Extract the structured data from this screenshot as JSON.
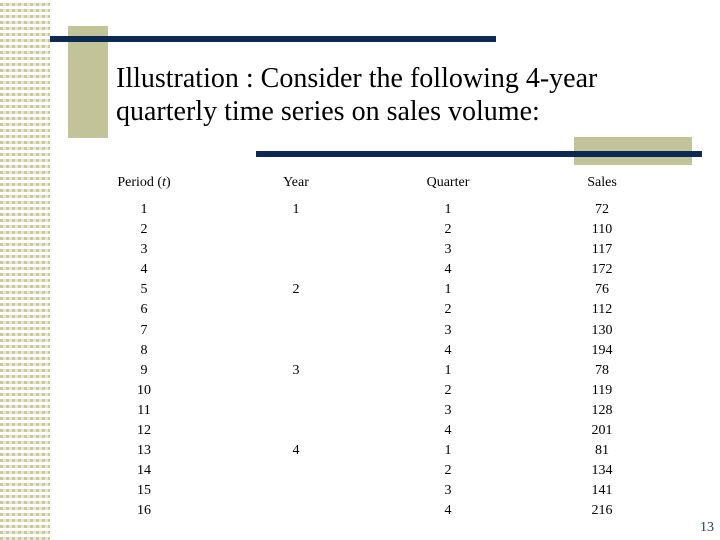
{
  "title": "Illustration : Consider the following 4-year quarterly time series on sales volume:",
  "table": {
    "headers": {
      "period": "Period (t)",
      "year": "Year",
      "quarter": "Quarter",
      "sales": "Sales"
    },
    "period": [
      "1",
      "2",
      "3",
      "4",
      "5",
      "6",
      "7",
      "8",
      "9",
      "10",
      "11",
      "12",
      "13",
      "14",
      "15",
      "16"
    ],
    "year": [
      "1",
      "",
      "",
      "",
      "2",
      "",
      "",
      "",
      "3",
      "",
      "",
      "",
      "4",
      "",
      "",
      ""
    ],
    "quarter": [
      "1",
      "2",
      "3",
      "4",
      "1",
      "2",
      "3",
      "4",
      "1",
      "2",
      "3",
      "4",
      "1",
      "2",
      "3",
      "4"
    ],
    "sales": [
      "72",
      "110",
      "117",
      "172",
      "76",
      "112",
      "130",
      "194",
      "78",
      "119",
      "128",
      "201",
      "81",
      "134",
      "141",
      "216"
    ]
  },
  "page_number": "13",
  "colors": {
    "rule": "#0d2a52",
    "accent": "#c3c39a",
    "page_number": "#1f3e6b"
  }
}
